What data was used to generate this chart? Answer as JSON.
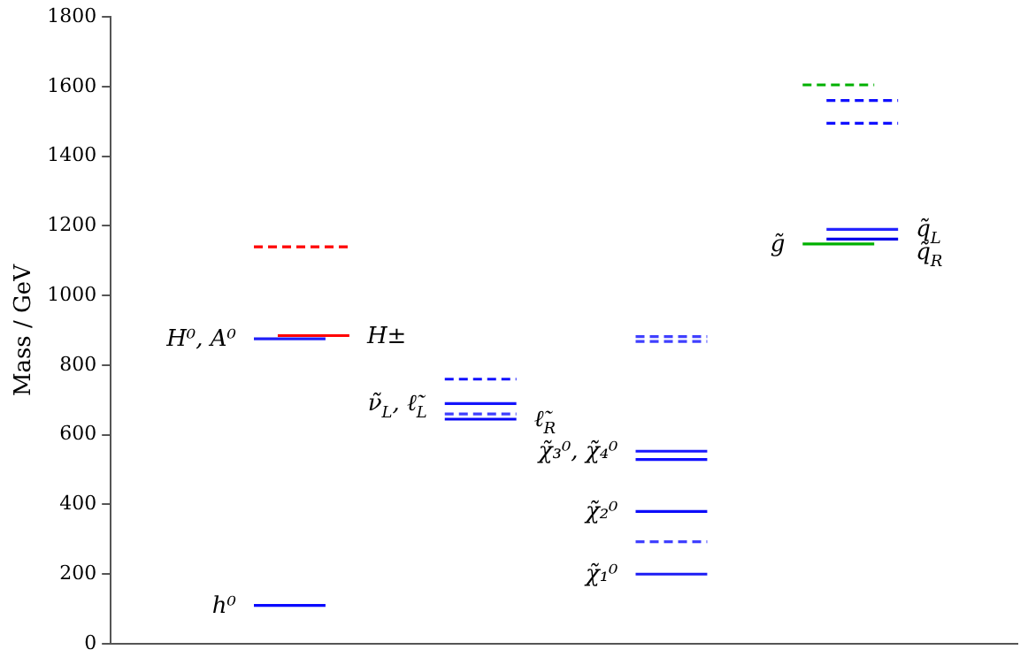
{
  "chart_data": {
    "type": "line",
    "ylabel": "Mass / GeV",
    "ylim": [
      0,
      1800
    ],
    "yticks": [
      0,
      200,
      400,
      600,
      800,
      1000,
      1200,
      1400,
      1600,
      1800
    ],
    "grid": false,
    "legend": false,
    "marker": "none",
    "tick_labels": "y",
    "categories": [
      null,
      null,
      null,
      null,
      null,
      null,
      null,
      null,
      null,
      null,
      null,
      null,
      null,
      null,
      null,
      null,
      null,
      null,
      null,
      null,
      null,
      null,
      null,
      null,
      null,
      null,
      null,
      null,
      null,
      null,
      null,
      null,
      null,
      null,
      null,
      null,
      null,
      null,
      null
    ],
    "series": [
      {
        "name": "h⁰",
        "color": "#0a0aff",
        "line_style": "solid",
        "values": [
          null,
          null,
          null,
          null,
          null,
          null,
          110,
          null,
          null,
          110,
          null,
          null,
          null,
          null,
          null,
          null,
          null,
          null,
          null,
          null,
          null,
          null,
          null,
          null,
          null,
          null,
          null,
          null,
          null,
          null,
          null,
          null,
          null,
          null,
          null,
          null,
          null,
          null,
          null
        ]
      },
      {
        "name": "H⁰, A⁰",
        "color": "#2020f8",
        "line_style": "solid",
        "values": [
          null,
          null,
          null,
          null,
          null,
          null,
          876,
          null,
          null,
          876,
          null,
          null,
          null,
          null,
          null,
          null,
          null,
          null,
          null,
          null,
          null,
          null,
          null,
          null,
          null,
          null,
          null,
          null,
          null,
          null,
          null,
          null,
          null,
          null,
          null,
          null,
          null,
          null,
          null
        ]
      },
      {
        "name": "H±",
        "color": "#ff0000",
        "line_style": "solid",
        "values": [
          null,
          null,
          null,
          null,
          null,
          null,
          null,
          885,
          null,
          null,
          885,
          null,
          null,
          null,
          null,
          null,
          null,
          null,
          null,
          null,
          null,
          null,
          null,
          null,
          null,
          null,
          null,
          null,
          null,
          null,
          null,
          null,
          null,
          null,
          null,
          null,
          null,
          null,
          null
        ]
      },
      {
        "color": "#ff0000",
        "line_style": "dashed",
        "values": [
          null,
          null,
          null,
          null,
          null,
          null,
          1140,
          null,
          null,
          null,
          1140,
          null,
          null,
          null,
          null,
          null,
          null,
          null,
          null,
          null,
          null,
          null,
          null,
          null,
          null,
          null,
          null,
          null,
          null,
          null,
          null,
          null,
          null,
          null,
          null,
          null,
          null,
          null,
          null
        ]
      },
      {
        "color": "#1010ff",
        "line_style": "dashed",
        "values": [
          null,
          null,
          null,
          null,
          null,
          null,
          null,
          null,
          null,
          null,
          null,
          null,
          null,
          null,
          760,
          null,
          null,
          760,
          null,
          null,
          null,
          null,
          null,
          null,
          null,
          null,
          null,
          null,
          null,
          null,
          null,
          null,
          null,
          null,
          null,
          null,
          null,
          null,
          null
        ]
      },
      {
        "name": "ν̃$_{L}$, ℓ̃$_{L}$",
        "color": "#1414fc",
        "line_style": "solid",
        "values": [
          null,
          null,
          null,
          null,
          null,
          null,
          null,
          null,
          null,
          null,
          null,
          null,
          null,
          null,
          690,
          null,
          null,
          690,
          null,
          null,
          null,
          null,
          null,
          null,
          null,
          null,
          null,
          null,
          null,
          null,
          null,
          null,
          null,
          null,
          null,
          null,
          null,
          null,
          null
        ]
      },
      {
        "name": "ℓ̃$_{R}$",
        "color": "#0606f6",
        "line_style": "solid",
        "values": [
          null,
          null,
          null,
          null,
          null,
          null,
          null,
          null,
          null,
          null,
          null,
          null,
          null,
          null,
          645,
          null,
          null,
          645,
          null,
          null,
          null,
          null,
          null,
          null,
          null,
          null,
          null,
          null,
          null,
          null,
          null,
          null,
          null,
          null,
          null,
          null,
          null,
          null,
          null
        ]
      },
      {
        "color": "#4040ff",
        "line_style": "dashed",
        "values": [
          null,
          null,
          null,
          null,
          null,
          null,
          null,
          null,
          null,
          null,
          null,
          null,
          null,
          null,
          660,
          null,
          null,
          660,
          null,
          null,
          null,
          null,
          null,
          null,
          null,
          null,
          null,
          null,
          null,
          null,
          null,
          null,
          null,
          null,
          null,
          null,
          null,
          null,
          null
        ]
      },
      {
        "color": "#4040ff",
        "line_style": "dashed",
        "values": [
          null,
          null,
          null,
          null,
          null,
          null,
          null,
          null,
          null,
          null,
          null,
          null,
          null,
          null,
          null,
          null,
          null,
          null,
          null,
          null,
          null,
          null,
          882,
          null,
          null,
          882,
          null,
          null,
          null,
          null,
          null,
          null,
          null,
          null,
          null,
          null,
          null,
          null,
          null
        ]
      },
      {
        "color": "#4040ff",
        "line_style": "dashed",
        "values": [
          null,
          null,
          null,
          null,
          null,
          null,
          null,
          null,
          null,
          null,
          null,
          null,
          null,
          null,
          null,
          null,
          null,
          null,
          null,
          null,
          null,
          null,
          868,
          null,
          null,
          868,
          null,
          null,
          null,
          null,
          null,
          null,
          null,
          null,
          null,
          null,
          null,
          null,
          null
        ]
      },
      {
        "name": "χ̃₃⁰, χ̃₄⁰",
        "color": "#1818ff",
        "line_style": "solid",
        "values": [
          null,
          null,
          null,
          null,
          null,
          null,
          null,
          null,
          null,
          null,
          null,
          null,
          null,
          null,
          null,
          null,
          null,
          null,
          null,
          null,
          null,
          null,
          553,
          null,
          null,
          553,
          null,
          null,
          null,
          null,
          null,
          null,
          null,
          null,
          null,
          null,
          null,
          null,
          null
        ]
      },
      {
        "color": "#1010ff",
        "line_style": "solid",
        "values": [
          null,
          null,
          null,
          null,
          null,
          null,
          null,
          null,
          null,
          null,
          null,
          null,
          null,
          null,
          null,
          null,
          null,
          null,
          null,
          null,
          null,
          null,
          529,
          null,
          null,
          529,
          null,
          null,
          null,
          null,
          null,
          null,
          null,
          null,
          null,
          null,
          null,
          null,
          null
        ]
      },
      {
        "name": "χ̃₂⁰",
        "color": "#0c0cfa",
        "line_style": "solid",
        "values": [
          null,
          null,
          null,
          null,
          null,
          null,
          null,
          null,
          null,
          null,
          null,
          null,
          null,
          null,
          null,
          null,
          null,
          null,
          null,
          null,
          null,
          null,
          380,
          null,
          null,
          380,
          null,
          null,
          null,
          null,
          null,
          null,
          null,
          null,
          null,
          null,
          null,
          null,
          null
        ]
      },
      {
        "color": "#4040ff",
        "line_style": "dashed",
        "values": [
          null,
          null,
          null,
          null,
          null,
          null,
          null,
          null,
          null,
          null,
          null,
          null,
          null,
          null,
          null,
          null,
          null,
          null,
          null,
          null,
          null,
          null,
          293,
          null,
          null,
          293,
          null,
          null,
          null,
          null,
          null,
          null,
          null,
          null,
          null,
          null,
          null,
          null,
          null
        ]
      },
      {
        "name": "χ̃₁⁰",
        "color": "#1c1cf4",
        "line_style": "solid",
        "values": [
          null,
          null,
          null,
          null,
          null,
          null,
          null,
          null,
          null,
          null,
          null,
          null,
          null,
          null,
          null,
          null,
          null,
          null,
          null,
          null,
          null,
          null,
          200,
          null,
          null,
          200,
          null,
          null,
          null,
          null,
          null,
          null,
          null,
          null,
          null,
          null,
          null,
          null,
          null
        ]
      },
      {
        "color": "#00b000",
        "line_style": "dashed",
        "values": [
          null,
          null,
          null,
          null,
          null,
          null,
          null,
          null,
          null,
          null,
          null,
          null,
          null,
          null,
          null,
          null,
          null,
          null,
          null,
          null,
          null,
          null,
          null,
          null,
          null,
          null,
          null,
          null,
          null,
          1605,
          null,
          null,
          1605,
          null,
          null,
          null,
          null,
          null,
          null
        ]
      },
      {
        "color": "#1010ff",
        "line_style": "dashed",
        "values": [
          null,
          null,
          null,
          null,
          null,
          null,
          null,
          null,
          null,
          null,
          null,
          null,
          null,
          null,
          null,
          null,
          null,
          null,
          null,
          null,
          null,
          null,
          null,
          null,
          null,
          null,
          null,
          null,
          null,
          null,
          1560,
          null,
          null,
          1560,
          null,
          null,
          null,
          null,
          null
        ]
      },
      {
        "color": "#1010ff",
        "line_style": "dashed",
        "values": [
          null,
          null,
          null,
          null,
          null,
          null,
          null,
          null,
          null,
          null,
          null,
          null,
          null,
          null,
          null,
          null,
          null,
          null,
          null,
          null,
          null,
          null,
          null,
          null,
          null,
          null,
          null,
          null,
          null,
          null,
          1495,
          null,
          null,
          1495,
          null,
          null,
          null,
          null,
          null
        ]
      },
      {
        "name": "g̃",
        "color": "#00b000",
        "line_style": "solid",
        "values": [
          null,
          null,
          null,
          null,
          null,
          null,
          null,
          null,
          null,
          null,
          null,
          null,
          null,
          null,
          null,
          null,
          null,
          null,
          null,
          null,
          null,
          null,
          null,
          null,
          null,
          null,
          null,
          null,
          null,
          1148,
          null,
          null,
          1148,
          null,
          null,
          null,
          null,
          null,
          null
        ]
      },
      {
        "name": "q̃$_{L}$",
        "color": "#2424ff",
        "line_style": "solid",
        "values": [
          null,
          null,
          null,
          null,
          null,
          null,
          null,
          null,
          null,
          null,
          null,
          null,
          null,
          null,
          null,
          null,
          null,
          null,
          null,
          null,
          null,
          null,
          null,
          null,
          null,
          null,
          null,
          null,
          null,
          null,
          1190,
          null,
          null,
          1190,
          null,
          null,
          null,
          null,
          null
        ]
      },
      {
        "name": "q̃$_{R}$",
        "color": "#0000e8",
        "line_style": "solid",
        "values": [
          null,
          null,
          null,
          null,
          null,
          null,
          null,
          null,
          null,
          null,
          null,
          null,
          null,
          null,
          null,
          null,
          null,
          null,
          null,
          null,
          null,
          null,
          null,
          null,
          null,
          null,
          null,
          null,
          null,
          null,
          1162,
          null,
          null,
          1162,
          null,
          null,
          null,
          null,
          null
        ]
      }
    ]
  }
}
